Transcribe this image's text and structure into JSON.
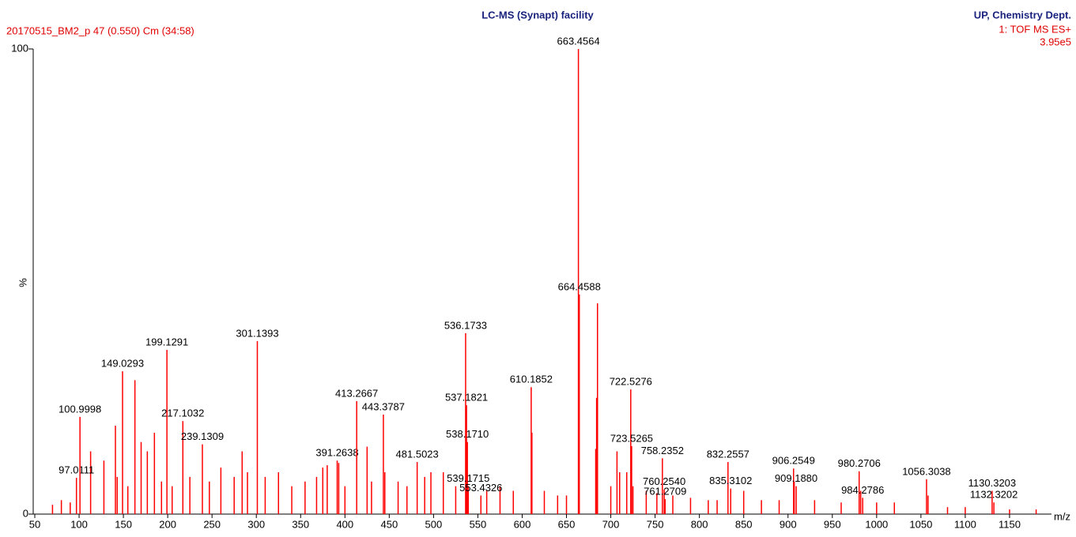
{
  "header_left": "20170515_BM2_p 47 (0.550) Cm (34:58)",
  "header_right": [
    "UP, Chemistry Dept.",
    "1: TOF MS ES+",
    "3.95e5"
  ],
  "chart_data": {
    "type": "spectrum",
    "title": "LC-MS (Synapt) facility",
    "xlabel": "m/z",
    "ylabel": "%",
    "color": "#ff0000",
    "xlim": [
      50,
      1200
    ],
    "xticks": [
      50,
      100,
      150,
      200,
      250,
      300,
      350,
      400,
      450,
      500,
      550,
      600,
      650,
      700,
      750,
      800,
      850,
      900,
      950,
      1000,
      1050,
      1100,
      1150
    ],
    "ylim": [
      0,
      100
    ],
    "yticks": [
      0,
      100
    ],
    "peaks": {
      "x": [
        97.0111,
        100.9998,
        149.0293,
        199.1291,
        217.1032,
        239.1309,
        301.1393,
        391.2638,
        413.2667,
        443.3787,
        481.5023,
        536.1733,
        537.1821,
        538.171,
        539.1715,
        553.4326,
        610.1852,
        663.4564,
        664.4588,
        722.5276,
        723.5265,
        758.2352,
        760.254,
        761.2709,
        832.2557,
        835.3102,
        906.2549,
        909.188,
        980.2706,
        984.2786,
        1056.3038,
        1130.3203,
        1132.3202
      ],
      "labels": [
        "97.0111",
        "100.9998",
        "149.0293",
        "199.1291",
        "217.1032",
        "239.1309",
        "301.1393",
        "391.2638",
        "413.2667",
        "443.3787",
        "481.5023",
        "536.1733",
        "537.1821",
        "538.1710",
        "539.1715",
        "553.4326",
        "610.1852",
        "663.4564",
        "664.4588",
        "722.5276",
        "723.5265",
        "758.2352",
        "760.2540",
        "761.2709",
        "832.2557",
        "835.3102",
        "906.2549",
        "909.1880",
        "980.2706",
        "984.2786",
        "1056.3038",
        "1130.3203",
        "1132.3202"
      ],
      "values": [
        7.8,
        20.9,
        30.7,
        35.3,
        20,
        15,
        37.2,
        11.5,
        24.3,
        21.4,
        11.2,
        38.9,
        23.4,
        15.5,
        6,
        4,
        27.3,
        100,
        47.2,
        26.8,
        14.6,
        12,
        5.3,
        3.2,
        11.2,
        5.5,
        9.8,
        6,
        9.2,
        3.5,
        7.5,
        5,
        2.5
      ]
    },
    "minor_peaks": {
      "x": [
        70,
        80,
        90,
        113,
        128,
        141,
        143,
        155,
        163,
        170,
        177,
        185,
        193,
        205,
        225,
        247,
        260,
        275,
        284,
        290,
        310,
        325,
        340,
        355,
        368,
        375,
        380,
        393,
        400,
        425,
        430,
        445,
        460,
        470,
        490,
        497,
        511,
        525,
        560,
        575,
        590,
        611,
        625,
        640,
        650,
        683,
        684,
        685,
        700,
        707,
        710,
        718,
        725,
        740,
        752,
        770,
        790,
        810,
        820,
        850,
        870,
        890,
        907,
        930,
        960,
        982,
        1000,
        1020,
        1058,
        1080,
        1100,
        1150,
        1180
      ],
      "values": [
        2,
        3,
        2.5,
        13.5,
        11.5,
        19,
        8,
        6,
        28.8,
        15.5,
        13.5,
        17.5,
        7,
        6,
        8,
        7,
        10,
        8,
        13.5,
        9,
        8,
        9,
        6,
        7,
        8,
        10,
        10.5,
        11,
        6,
        14.5,
        7,
        9,
        7,
        6,
        8,
        9,
        9,
        6,
        5,
        6,
        5,
        17.5,
        5,
        4,
        4,
        14,
        25,
        45.3,
        6,
        13.5,
        9,
        9,
        6,
        5,
        4.5,
        4,
        3.5,
        3,
        3,
        5,
        3,
        3,
        7,
        3,
        2.5,
        5,
        2.5,
        2.5,
        4,
        1.5,
        1.5,
        1,
        1
      ]
    }
  }
}
